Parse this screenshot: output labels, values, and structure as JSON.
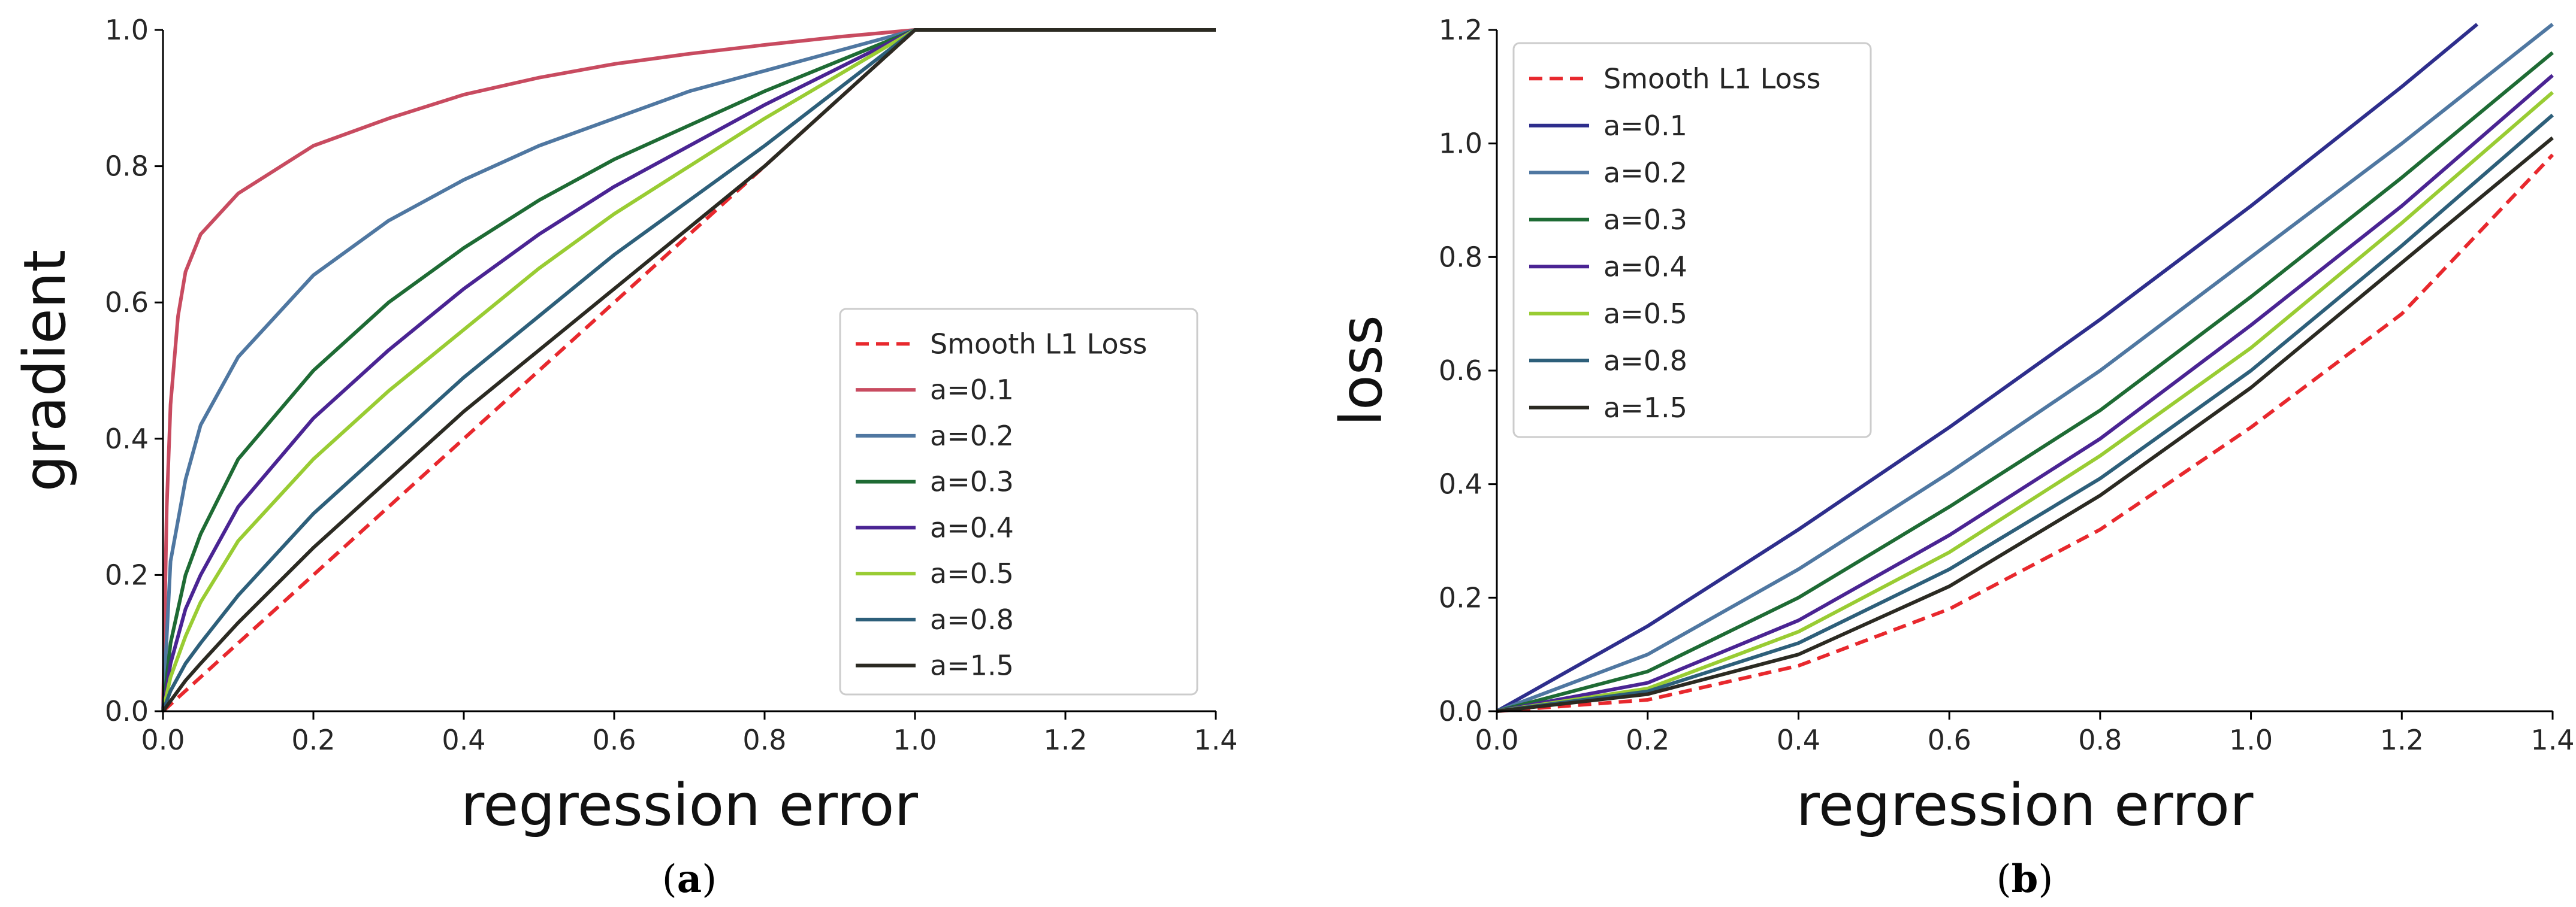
{
  "chart_data": [
    {
      "type": "line",
      "panel_label": "a",
      "title": "",
      "xlabel": "regression error",
      "ylabel": "gradient",
      "xlim": [
        0.0,
        1.4
      ],
      "ylim": [
        0.0,
        1.0
      ],
      "xticks": [
        "0.0",
        "0.2",
        "0.4",
        "0.6",
        "0.8",
        "1.0",
        "1.2",
        "1.4"
      ],
      "yticks": [
        "0.0",
        "0.2",
        "0.4",
        "0.6",
        "0.8",
        "1.0"
      ],
      "grid": false,
      "legend_position": "lower-right",
      "series": [
        {
          "name": "Smooth L1 Loss",
          "color": "#e8282d",
          "dashed": true,
          "x": [
            0,
            0.2,
            0.4,
            0.6,
            0.8,
            1.0,
            1.2,
            1.4
          ],
          "y": [
            0,
            0.2,
            0.4,
            0.6,
            0.8,
            1.0,
            1.0,
            1.0
          ]
        },
        {
          "name": "a=0.1",
          "color": "#c84b60",
          "dashed": false,
          "x": [
            0,
            0.005,
            0.01,
            0.02,
            0.03,
            0.05,
            0.1,
            0.2,
            0.3,
            0.4,
            0.5,
            0.6,
            0.7,
            0.8,
            0.9,
            1.0,
            1.2,
            1.4
          ],
          "y": [
            0,
            0.3,
            0.45,
            0.58,
            0.645,
            0.7,
            0.76,
            0.83,
            0.87,
            0.905,
            0.93,
            0.95,
            0.965,
            0.978,
            0.99,
            1.0,
            1.0,
            1.0
          ]
        },
        {
          "name": "a=0.2",
          "color": "#4f77a1",
          "dashed": false,
          "x": [
            0,
            0.01,
            0.03,
            0.05,
            0.1,
            0.2,
            0.3,
            0.4,
            0.5,
            0.6,
            0.7,
            0.8,
            0.9,
            1.0,
            1.2,
            1.4
          ],
          "y": [
            0,
            0.22,
            0.34,
            0.42,
            0.52,
            0.64,
            0.72,
            0.78,
            0.83,
            0.87,
            0.91,
            0.94,
            0.97,
            1.0,
            1.0,
            1.0
          ]
        },
        {
          "name": "a=0.3",
          "color": "#1e6b34",
          "dashed": false,
          "x": [
            0,
            0.01,
            0.03,
            0.05,
            0.1,
            0.2,
            0.3,
            0.4,
            0.5,
            0.6,
            0.7,
            0.8,
            0.9,
            1.0,
            1.2,
            1.4
          ],
          "y": [
            0,
            0.1,
            0.2,
            0.26,
            0.37,
            0.5,
            0.6,
            0.68,
            0.75,
            0.81,
            0.86,
            0.91,
            0.955,
            1.0,
            1.0,
            1.0
          ]
        },
        {
          "name": "a=0.4",
          "color": "#4a2493",
          "dashed": false,
          "x": [
            0,
            0.01,
            0.03,
            0.05,
            0.1,
            0.2,
            0.3,
            0.4,
            0.5,
            0.6,
            0.7,
            0.8,
            0.9,
            1.0,
            1.2,
            1.4
          ],
          "y": [
            0,
            0.07,
            0.15,
            0.2,
            0.3,
            0.43,
            0.53,
            0.62,
            0.7,
            0.77,
            0.83,
            0.89,
            0.945,
            1.0,
            1.0,
            1.0
          ]
        },
        {
          "name": "a=0.5",
          "color": "#99cc33",
          "dashed": false,
          "x": [
            0,
            0.01,
            0.03,
            0.05,
            0.1,
            0.2,
            0.3,
            0.4,
            0.5,
            0.6,
            0.7,
            0.8,
            0.9,
            1.0,
            1.2,
            1.4
          ],
          "y": [
            0,
            0.05,
            0.11,
            0.16,
            0.25,
            0.37,
            0.47,
            0.56,
            0.65,
            0.73,
            0.8,
            0.87,
            0.935,
            1.0,
            1.0,
            1.0
          ]
        },
        {
          "name": "a=0.8",
          "color": "#2d5f7a",
          "dashed": false,
          "x": [
            0,
            0.01,
            0.03,
            0.05,
            0.1,
            0.2,
            0.3,
            0.4,
            0.5,
            0.6,
            0.7,
            0.8,
            0.9,
            1.0,
            1.2,
            1.4
          ],
          "y": [
            0,
            0.03,
            0.07,
            0.1,
            0.17,
            0.29,
            0.39,
            0.49,
            0.58,
            0.67,
            0.75,
            0.83,
            0.915,
            1.0,
            1.0,
            1.0
          ]
        },
        {
          "name": "a=1.5",
          "color": "#2b2a22",
          "dashed": false,
          "x": [
            0,
            0.01,
            0.03,
            0.05,
            0.1,
            0.2,
            0.3,
            0.4,
            0.5,
            0.6,
            0.7,
            0.8,
            0.9,
            1.0,
            1.2,
            1.4
          ],
          "y": [
            0,
            0.015,
            0.045,
            0.07,
            0.13,
            0.24,
            0.34,
            0.44,
            0.53,
            0.62,
            0.71,
            0.8,
            0.9,
            1.0,
            1.0,
            1.0
          ]
        }
      ]
    },
    {
      "type": "line",
      "panel_label": "b",
      "title": "",
      "xlabel": "regression error",
      "ylabel": "loss",
      "xlim": [
        0.0,
        1.4
      ],
      "ylim": [
        0.0,
        1.2
      ],
      "xticks": [
        "0.0",
        "0.2",
        "0.4",
        "0.6",
        "0.8",
        "1.0",
        "1.2",
        "1.4"
      ],
      "yticks": [
        "0.0",
        "0.2",
        "0.4",
        "0.6",
        "0.8",
        "1.0",
        "1.2"
      ],
      "grid": false,
      "legend_position": "upper-left",
      "series": [
        {
          "name": "Smooth L1 Loss",
          "color": "#e8282d",
          "dashed": true,
          "x": [
            0,
            0.2,
            0.4,
            0.6,
            0.8,
            1.0,
            1.2,
            1.4
          ],
          "y": [
            0,
            0.02,
            0.08,
            0.18,
            0.32,
            0.5,
            0.7,
            0.98
          ]
        },
        {
          "name": "a=0.1",
          "color": "#2e2e8c",
          "dashed": false,
          "x": [
            0,
            0.2,
            0.4,
            0.6,
            0.8,
            1.0,
            1.2,
            1.3
          ],
          "y": [
            0,
            0.15,
            0.32,
            0.5,
            0.69,
            0.89,
            1.1,
            1.21
          ]
        },
        {
          "name": "a=0.2",
          "color": "#4f77a1",
          "dashed": false,
          "x": [
            0,
            0.2,
            0.4,
            0.6,
            0.8,
            1.0,
            1.2,
            1.4
          ],
          "y": [
            0,
            0.1,
            0.25,
            0.42,
            0.6,
            0.8,
            1.0,
            1.21
          ]
        },
        {
          "name": "a=0.3",
          "color": "#1e6b34",
          "dashed": false,
          "x": [
            0,
            0.2,
            0.4,
            0.6,
            0.8,
            1.0,
            1.2,
            1.4
          ],
          "y": [
            0,
            0.07,
            0.2,
            0.36,
            0.53,
            0.73,
            0.94,
            1.16
          ]
        },
        {
          "name": "a=0.4",
          "color": "#4a2493",
          "dashed": false,
          "x": [
            0,
            0.2,
            0.4,
            0.6,
            0.8,
            1.0,
            1.2,
            1.4
          ],
          "y": [
            0,
            0.05,
            0.16,
            0.31,
            0.48,
            0.68,
            0.89,
            1.12
          ]
        },
        {
          "name": "a=0.5",
          "color": "#99cc33",
          "dashed": false,
          "x": [
            0,
            0.2,
            0.4,
            0.6,
            0.8,
            1.0,
            1.2,
            1.4
          ],
          "y": [
            0,
            0.04,
            0.14,
            0.28,
            0.45,
            0.64,
            0.86,
            1.09
          ]
        },
        {
          "name": "a=0.8",
          "color": "#2d5f7a",
          "dashed": false,
          "x": [
            0,
            0.2,
            0.4,
            0.6,
            0.8,
            1.0,
            1.2,
            1.4
          ],
          "y": [
            0,
            0.035,
            0.12,
            0.25,
            0.41,
            0.6,
            0.82,
            1.05
          ]
        },
        {
          "name": "a=1.5",
          "color": "#2b2a22",
          "dashed": false,
          "x": [
            0,
            0.2,
            0.4,
            0.6,
            0.8,
            1.0,
            1.2,
            1.4
          ],
          "y": [
            0,
            0.03,
            0.1,
            0.22,
            0.38,
            0.57,
            0.79,
            1.01
          ]
        }
      ]
    }
  ]
}
